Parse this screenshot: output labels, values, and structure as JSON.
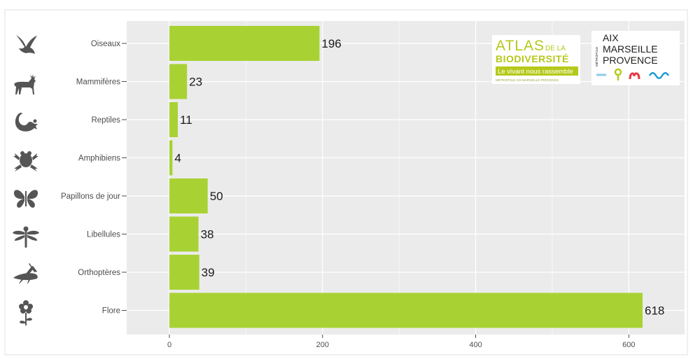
{
  "chart_data": {
    "type": "bar",
    "orientation": "horizontal",
    "categories": [
      "Oiseaux",
      "Mammifères",
      "Reptiles",
      "Amphibiens",
      "Papillons de jour",
      "Libellules",
      "Orthoptères",
      "Flore"
    ],
    "values": [
      196,
      23,
      11,
      4,
      50,
      38,
      39,
      618
    ],
    "data_labels": [
      "196",
      "23",
      "11",
      "4",
      "50",
      "38",
      "39",
      "618"
    ],
    "xticks": [
      0,
      200,
      400,
      600
    ],
    "xtick_labels": [
      "0",
      "200",
      "400",
      "600"
    ],
    "xlim": [
      0,
      680
    ],
    "xlabel": "",
    "ylabel": "",
    "title": "",
    "grid": true,
    "legend": "none",
    "bar_color": "#a8d233",
    "panel_background": "#ebebeb",
    "gridline_color": "#ffffff",
    "category_icons": [
      "bird-icon",
      "deer-icon",
      "lizard-icon",
      "frog-icon",
      "butterfly-icon",
      "dragonfly-icon",
      "grasshopper-icon",
      "flower-icon"
    ]
  },
  "logos": {
    "atlas": {
      "line1_a": "ATLAS",
      "line1_b": "DE LA",
      "line2": "BIODIVERSITÉ",
      "tagline": "Le vivant nous rassemble",
      "footer": "MÉTROPOLE AIX-MARSEILLE-PROVENCE",
      "color": "#b5c91a"
    },
    "metropole": {
      "side": "MÉTROPOLE",
      "line1": "AIX",
      "line2": "MARSEILLE",
      "line3": "PROVENCE",
      "color": "#1d1d1b"
    }
  }
}
